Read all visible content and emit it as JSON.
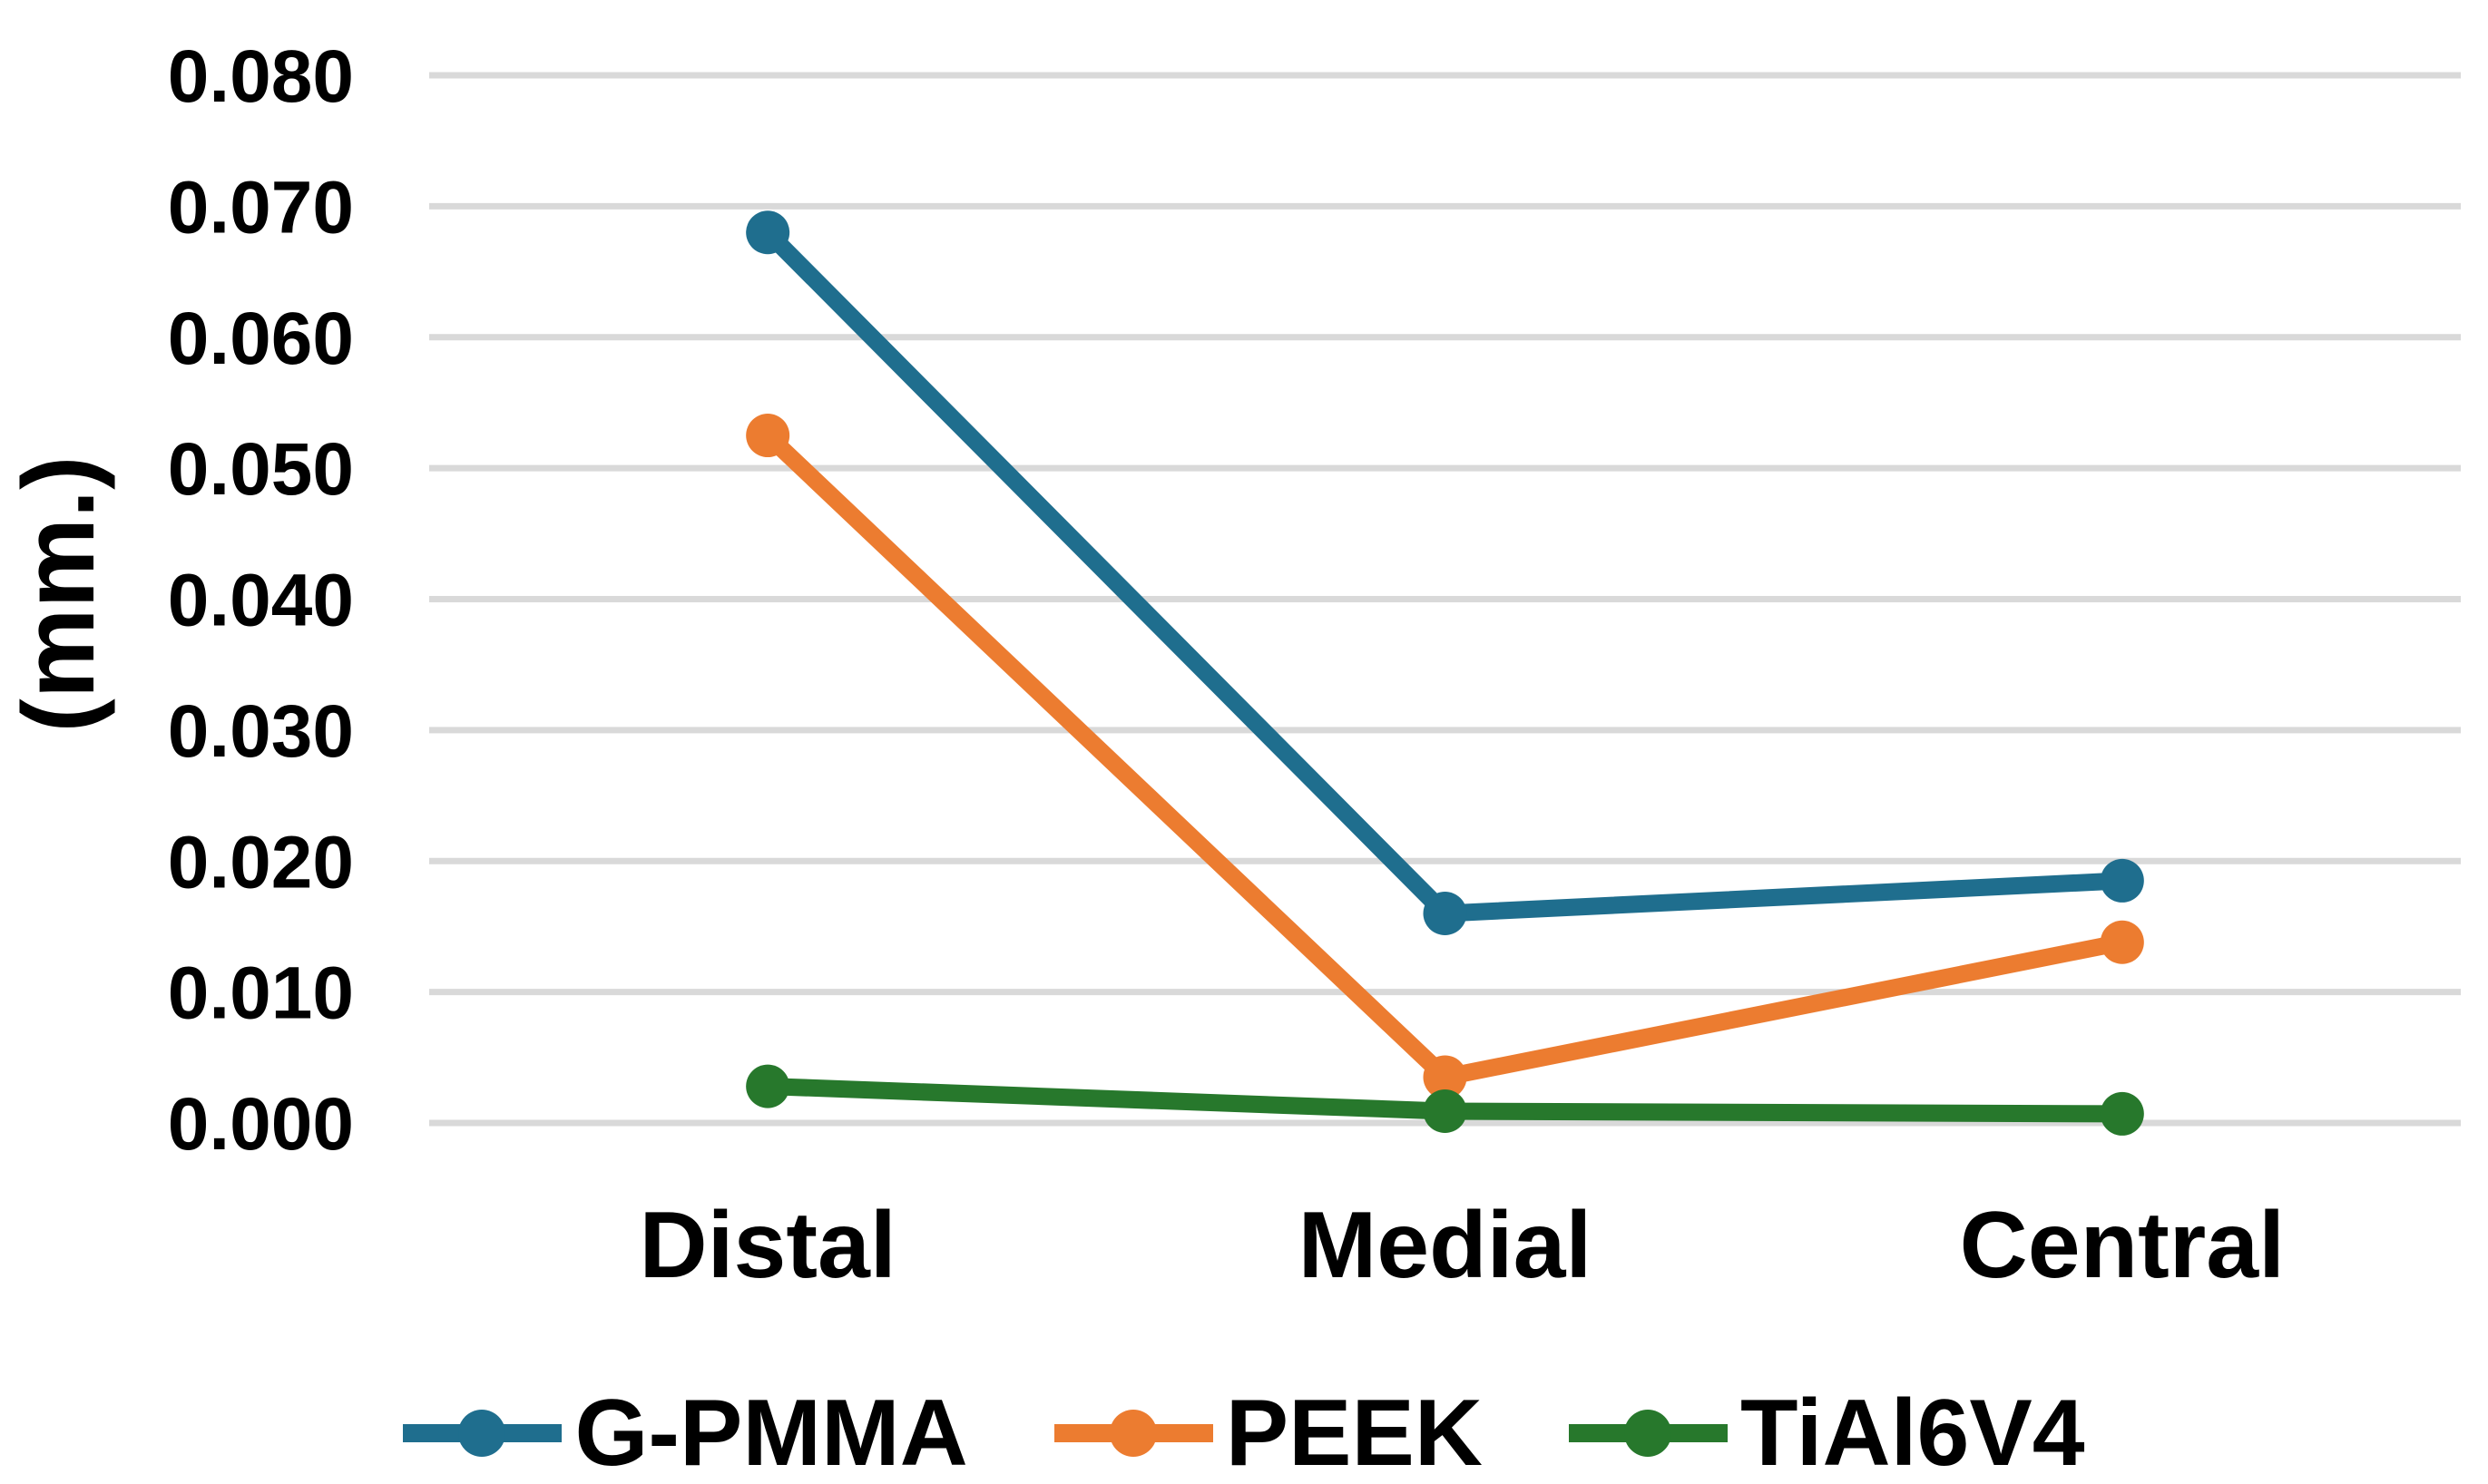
{
  "chart_data": {
    "type": "line",
    "title": "",
    "xlabel": "",
    "ylabel": "(mm.)",
    "categories": [
      "Distal",
      "Medial",
      "Central"
    ],
    "series": [
      {
        "name": "G-PMMA",
        "color": "#1F6E8E",
        "values": [
          0.068,
          0.016,
          0.0185
        ]
      },
      {
        "name": "PEEK",
        "color": "#EC7C30",
        "values": [
          0.0525,
          0.0035,
          0.0138
        ]
      },
      {
        "name": "TiAl6V4",
        "color": "#27782C",
        "values": [
          0.0028,
          0.0009,
          0.0007
        ]
      }
    ],
    "y_axis": {
      "min": 0.0,
      "max": 0.08,
      "step": 0.01,
      "tick_labels_top_to_bottom": [
        "0.080",
        "0.070",
        "0.060",
        "0.050",
        "0.040",
        "0.030",
        "0.020",
        "0.010",
        "0.000"
      ]
    },
    "grid": true,
    "gridline_color": "#D9D9D9",
    "background_color": "#FFFFFF",
    "text_color": "#000000",
    "legend_position": "bottom",
    "marker": "circle"
  }
}
